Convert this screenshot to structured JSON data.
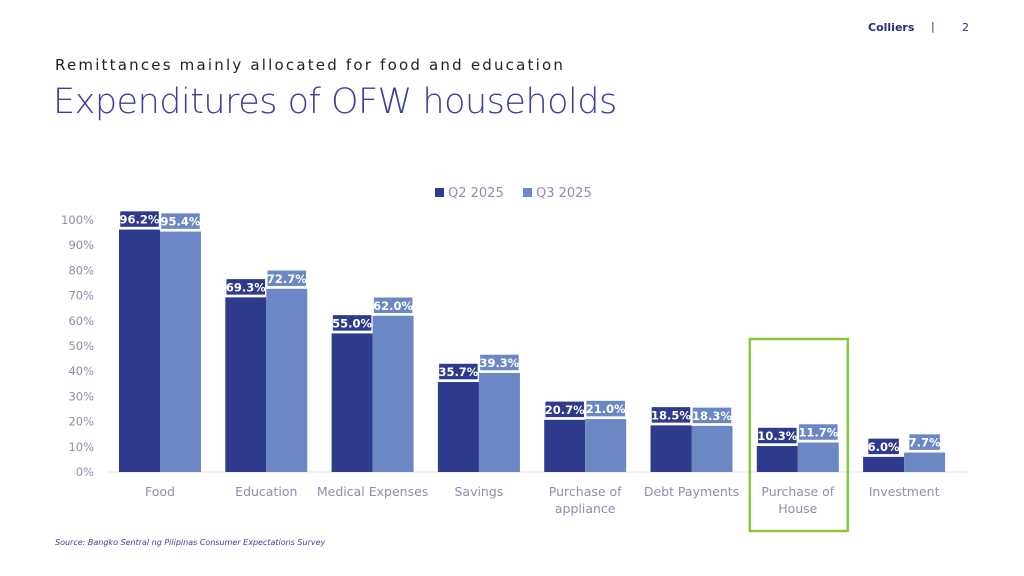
{
  "header": {
    "brand": "Colliers",
    "separator": "|",
    "page_number": "2"
  },
  "subtitle": "Remittances mainly allocated for food and education",
  "title": "Expenditures of OFW households",
  "source": "Source: Bangko Sentral ng Pilipinas Consumer Expectations Survey",
  "colors": {
    "q2": "#2e3a8c",
    "q3": "#6b87c4",
    "highlight": "#8cc63f",
    "axis_text": "#8a8fb0"
  },
  "chart_data": {
    "type": "bar",
    "categories": [
      [
        "Food"
      ],
      [
        "Education"
      ],
      [
        "Medical Expenses"
      ],
      [
        "Savings"
      ],
      [
        "Purchase of",
        "appliance"
      ],
      [
        "Debt Payments"
      ],
      [
        "Purchase of",
        "House"
      ],
      [
        "Investment"
      ]
    ],
    "series": [
      {
        "name": "Q2 2025",
        "values": [
          96.2,
          69.3,
          55.0,
          35.7,
          20.7,
          18.5,
          10.3,
          6.0
        ],
        "labels": [
          "96.2%",
          "69.3%",
          "55.0%",
          "35.7%",
          "20.7%",
          "18.5%",
          "10.3%",
          "6.0%"
        ]
      },
      {
        "name": "Q3 2025",
        "values": [
          95.4,
          72.7,
          62.0,
          39.3,
          21.0,
          18.3,
          11.7,
          7.7
        ],
        "labels": [
          "95.4%",
          "72.7%",
          "62.0%",
          "39.3%",
          "21.0%",
          "18.3%",
          "11.7%",
          "7.7%"
        ]
      }
    ],
    "yticks": [
      "0%",
      "10%",
      "20%",
      "30%",
      "40%",
      "50%",
      "60%",
      "70%",
      "80%",
      "90%",
      "100%"
    ],
    "ylim": [
      0,
      100
    ],
    "legend_position": "top-center",
    "highlighted_category": "Purchase of House",
    "grid": false
  }
}
